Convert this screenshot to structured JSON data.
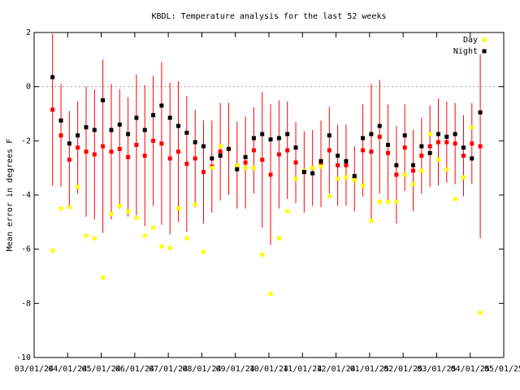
{
  "chart_data": {
    "type": "scatter",
    "title": "KBDL: Temperature analysis for the last 52 weeks",
    "y_label": "Mean error in degrees F",
    "legend": "upper right",
    "xlim": [
      0,
      14
    ],
    "xticks": [
      {
        "value": 0,
        "label": "03/01/24"
      },
      {
        "value": 1,
        "label": "04/01/24"
      },
      {
        "value": 2,
        "label": "05/01/24"
      },
      {
        "value": 3,
        "label": "06/01/24"
      },
      {
        "value": 4,
        "label": "07/01/24"
      },
      {
        "value": 5,
        "label": "08/01/24"
      },
      {
        "value": 6,
        "label": "09/01/24"
      },
      {
        "value": 7,
        "label": "10/01/24"
      },
      {
        "value": 8,
        "label": "11/01/24"
      },
      {
        "value": 9,
        "label": "12/01/24"
      },
      {
        "value": 10,
        "label": "01/01/25"
      },
      {
        "value": 11,
        "label": "02/01/25"
      },
      {
        "value": 12,
        "label": "03/01/25"
      },
      {
        "value": 13,
        "label": "04/01/25"
      },
      {
        "value": 14,
        "label": "05/01/25"
      }
    ],
    "ylim": [
      -10,
      2
    ],
    "yticks": [
      2,
      0,
      -2,
      -4,
      -6,
      -8,
      -10
    ],
    "x": [
      0.55,
      0.8,
      1.05,
      1.3,
      1.55,
      1.8,
      2.05,
      2.3,
      2.55,
      2.8,
      3.05,
      3.3,
      3.55,
      3.8,
      4.05,
      4.3,
      4.55,
      4.8,
      5.05,
      5.3,
      5.55,
      5.8,
      6.05,
      6.3,
      6.55,
      6.8,
      7.05,
      7.3,
      7.55,
      7.8,
      8.05,
      8.3,
      8.55,
      8.8,
      9.05,
      9.3,
      9.55,
      9.8,
      10.05,
      10.3,
      10.55,
      10.8,
      11.05,
      11.3,
      11.55,
      11.8,
      12.05,
      12.3,
      12.55,
      12.8,
      13.05,
      13.3
    ],
    "mean": {
      "color": "#ff0000",
      "values": [
        -0.85,
        -1.8,
        -2.7,
        -2.25,
        -2.4,
        -2.5,
        -2.2,
        -2.4,
        -2.3,
        -2.6,
        -2.15,
        -2.55,
        -2.0,
        -2.1,
        -2.65,
        -2.4,
        -2.85,
        -2.65,
        -3.15,
        -2.95,
        -2.4,
        -2.3,
        -2.9,
        -2.8,
        -2.35,
        -2.7,
        -3.25,
        -2.5,
        -2.35,
        -2.8,
        -3.15,
        -3.0,
        -2.85,
        -2.35,
        -2.9,
        -2.9,
        -3.4,
        -2.35,
        -2.4,
        -1.85,
        -2.45,
        -3.25,
        -2.25,
        -3.1,
        -2.55,
        -2.2,
        -2.05,
        -2.05,
        -2.1,
        -2.55,
        -2.1,
        -2.2
      ],
      "errors": [
        2.8,
        1.9,
        1.8,
        1.7,
        2.4,
        2.4,
        3.2,
        2.5,
        2.2,
        2.2,
        2.6,
        2.6,
        2.4,
        3.0,
        2.8,
        2.6,
        2.5,
        1.8,
        1.9,
        1.7,
        1.8,
        1.7,
        1.6,
        1.7,
        1.6,
        2.5,
        2.6,
        2.0,
        1.8,
        1.5,
        1.5,
        1.4,
        1.6,
        1.6,
        1.5,
        1.5,
        1.2,
        1.7,
        2.5,
        2.1,
        1.8,
        1.8,
        1.6,
        1.5,
        1.4,
        1.5,
        1.6,
        1.5,
        1.5,
        1.5,
        1.5,
        3.4
      ]
    },
    "series": [
      {
        "name": "Day",
        "color": "#ffff00",
        "values": [
          -6.05,
          -4.5,
          -4.45,
          -3.7,
          -5.5,
          -5.6,
          -7.05,
          -4.7,
          -4.4,
          -4.6,
          -4.85,
          -5.5,
          -5.2,
          -5.9,
          -5.95,
          -4.5,
          -5.6,
          -4.35,
          -6.1,
          -3.0,
          -2.2,
          -2.3,
          -2.9,
          -3.0,
          -3.0,
          -6.2,
          -7.65,
          -5.6,
          -4.6,
          -3.4,
          -3.1,
          -3.0,
          -2.95,
          -4.05,
          -3.4,
          -3.35,
          -3.45,
          -3.65,
          -4.95,
          -4.25,
          -4.25,
          -4.25,
          -3.25,
          -3.6,
          -3.1,
          -1.75,
          -2.7,
          -3.05,
          -4.15,
          -3.35,
          -1.5,
          -8.35
        ]
      },
      {
        "name": "Night",
        "color": "#000000",
        "values": [
          0.35,
          -1.25,
          -2.1,
          -1.8,
          -1.5,
          -1.6,
          -0.5,
          -1.6,
          -1.4,
          -1.75,
          -1.15,
          -1.6,
          -1.05,
          -0.7,
          -1.15,
          -1.45,
          -1.7,
          -2.05,
          -2.2,
          -2.65,
          -2.55,
          -2.3,
          -3.05,
          -2.6,
          -1.9,
          -1.75,
          -1.95,
          -1.9,
          -1.75,
          -2.25,
          -3.15,
          -3.2,
          -2.75,
          -1.8,
          -2.55,
          -2.75,
          -3.3,
          -1.9,
          -1.75,
          -1.45,
          -2.15,
          -2.9,
          -1.8,
          -2.9,
          -2.2,
          -2.45,
          -1.75,
          -1.85,
          -1.75,
          -2.25,
          -2.65,
          -0.95
        ]
      }
    ]
  }
}
